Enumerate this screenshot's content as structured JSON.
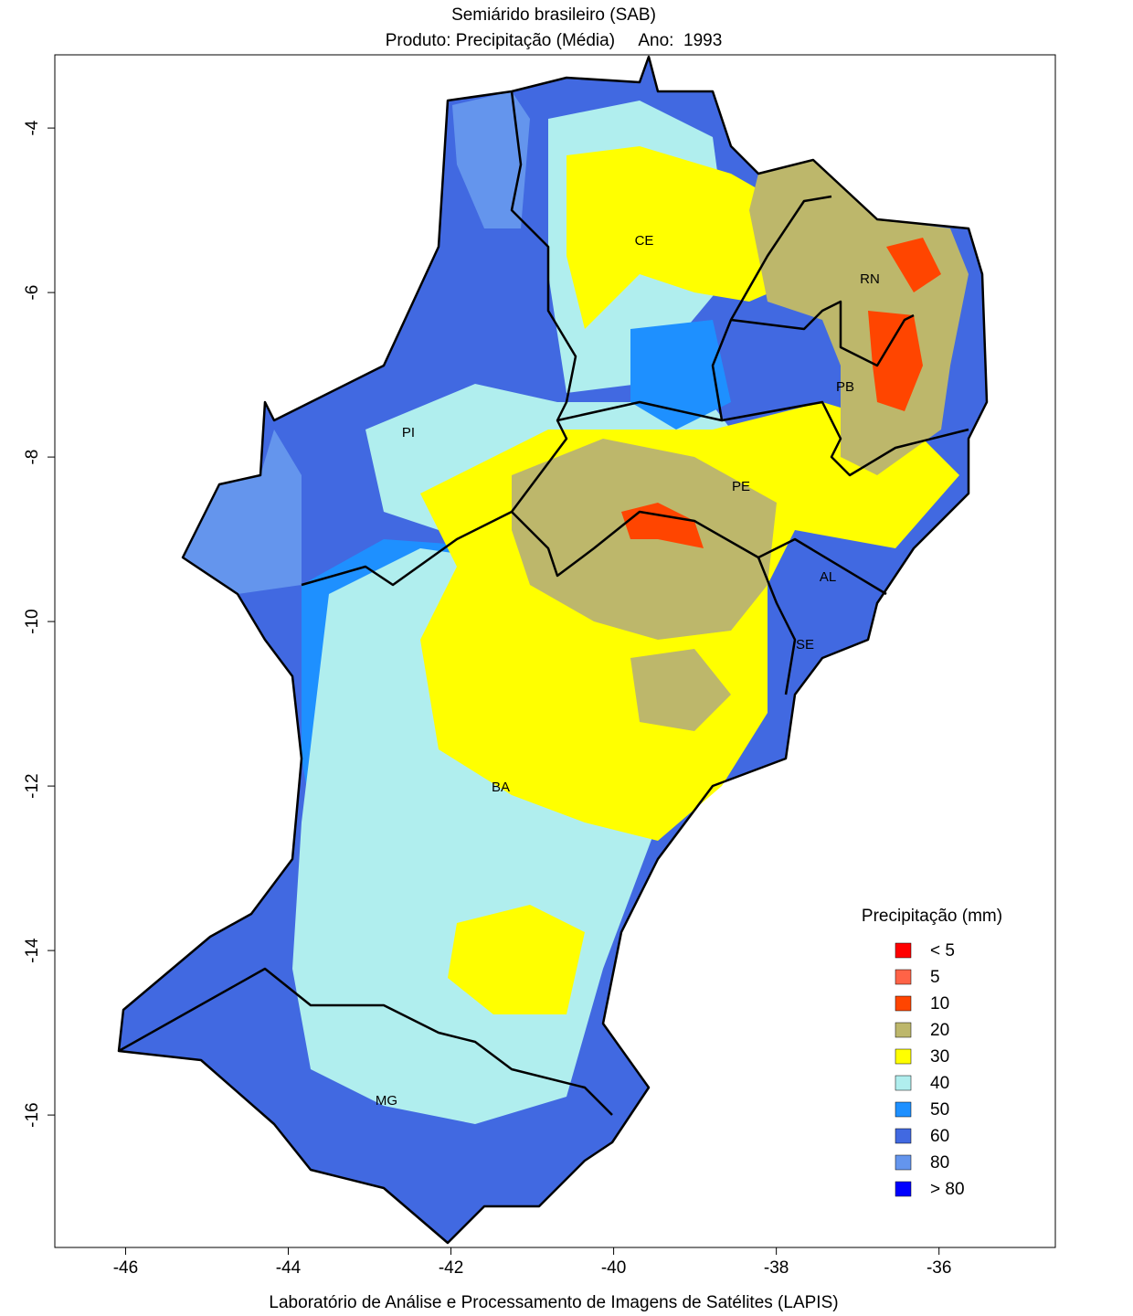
{
  "chart_data": {
    "type": "map",
    "title": "Semiárido brasileiro (SAB)",
    "subtitle": "Produto: Precipitação (Média)     Ano:  1993",
    "xlabel": "Laboratório de Análise e Processamento de Imagens de Satélites (LAPIS)",
    "xlim": [
      -46.87,
      -34.57
    ],
    "ylim": [
      -17.61,
      -3.11
    ],
    "xticks": [
      -46,
      -44,
      -42,
      -40,
      -38,
      -36
    ],
    "yticks": [
      -4,
      -6,
      -8,
      -10,
      -12,
      -14,
      -16
    ],
    "regions": [
      "CE",
      "RN",
      "PB",
      "PI",
      "PE",
      "AL",
      "SE",
      "BA",
      "MG"
    ],
    "legend": {
      "title": "Precipitação (mm)",
      "labels": [
        "< 5",
        "5",
        "10",
        "20",
        "30",
        "40",
        "50",
        "60",
        "80",
        "> 80"
      ],
      "colors": [
        "#ff0000",
        "#ff6347",
        "#ff4500",
        "#bdb76b",
        "#ffff00",
        "#b0eeee",
        "#1e90ff",
        "#4169e1",
        "#6495ed",
        "#0000ff"
      ]
    }
  }
}
